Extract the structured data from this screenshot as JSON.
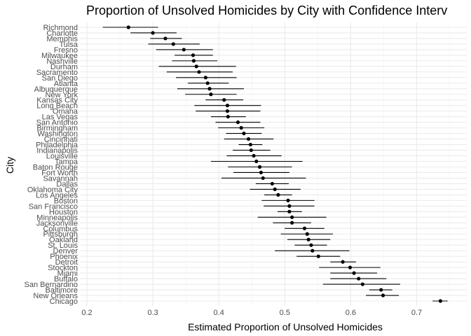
{
  "chart_data": {
    "type": "scatter",
    "title": "Proportion of Unsolved Homicides by City with Confidence Interv",
    "xlabel": "Estimated Proportion of Unsolved Homicides",
    "ylabel": "City",
    "xlim": [
      0.18,
      0.78
    ],
    "x_ticks": [
      0.2,
      0.3,
      0.4,
      0.5,
      0.6,
      0.7
    ],
    "x_tick_labels": [
      "0.2",
      "0.3",
      "0.4",
      "0.5",
      "0.6",
      "0.7"
    ],
    "grid": true,
    "point_color": "#000000",
    "cities": [
      {
        "name": "Richmond",
        "estimate": 0.263,
        "low": 0.224,
        "high": 0.308
      },
      {
        "name": "Charlotte",
        "estimate": 0.3,
        "low": 0.266,
        "high": 0.336
      },
      {
        "name": "Memphis",
        "estimate": 0.319,
        "low": 0.296,
        "high": 0.344
      },
      {
        "name": "Tulsa",
        "estimate": 0.331,
        "low": 0.293,
        "high": 0.371
      },
      {
        "name": "Fresno",
        "estimate": 0.347,
        "low": 0.305,
        "high": 0.391
      },
      {
        "name": "Milwaukee",
        "estimate": 0.361,
        "low": 0.333,
        "high": 0.391
      },
      {
        "name": "Nashville",
        "estimate": 0.362,
        "low": 0.329,
        "high": 0.398
      },
      {
        "name": "Durham",
        "estimate": 0.366,
        "low": 0.309,
        "high": 0.426
      },
      {
        "name": "Sacramento",
        "estimate": 0.37,
        "low": 0.321,
        "high": 0.421
      },
      {
        "name": "San Diego",
        "estimate": 0.38,
        "low": 0.335,
        "high": 0.427
      },
      {
        "name": "Atlanta",
        "estimate": 0.383,
        "low": 0.353,
        "high": 0.415
      },
      {
        "name": "Albuquerque",
        "estimate": 0.386,
        "low": 0.337,
        "high": 0.438
      },
      {
        "name": "New York",
        "estimate": 0.388,
        "low": 0.349,
        "high": 0.427
      },
      {
        "name": "Kansas City",
        "estimate": 0.408,
        "low": 0.38,
        "high": 0.437
      },
      {
        "name": "Long Beach",
        "estimate": 0.413,
        "low": 0.363,
        "high": 0.464
      },
      {
        "name": "Omaha",
        "estimate": 0.413,
        "low": 0.365,
        "high": 0.463
      },
      {
        "name": "Las Vegas",
        "estimate": 0.414,
        "low": 0.388,
        "high": 0.441
      },
      {
        "name": "San Antonio",
        "estimate": 0.429,
        "low": 0.395,
        "high": 0.463
      },
      {
        "name": "Birmingham",
        "estimate": 0.434,
        "low": 0.399,
        "high": 0.469
      },
      {
        "name": "Washington",
        "estimate": 0.438,
        "low": 0.411,
        "high": 0.465
      },
      {
        "name": "Cincinnati",
        "estimate": 0.445,
        "low": 0.408,
        "high": 0.483
      },
      {
        "name": "Philadelphia",
        "estimate": 0.448,
        "low": 0.43,
        "high": 0.466
      },
      {
        "name": "Indianapolis",
        "estimate": 0.449,
        "low": 0.421,
        "high": 0.478
      },
      {
        "name": "Louisville",
        "estimate": 0.453,
        "low": 0.412,
        "high": 0.495
      },
      {
        "name": "Tampa",
        "estimate": 0.457,
        "low": 0.388,
        "high": 0.527
      },
      {
        "name": "Baton Rouge",
        "estimate": 0.462,
        "low": 0.414,
        "high": 0.511
      },
      {
        "name": "Fort Worth",
        "estimate": 0.464,
        "low": 0.422,
        "high": 0.507
      },
      {
        "name": "Savannah",
        "estimate": 0.467,
        "low": 0.404,
        "high": 0.532
      },
      {
        "name": "Dallas",
        "estimate": 0.481,
        "low": 0.456,
        "high": 0.506
      },
      {
        "name": "Oklahoma City",
        "estimate": 0.485,
        "low": 0.447,
        "high": 0.524
      },
      {
        "name": "Los Angeles",
        "estimate": 0.49,
        "low": 0.469,
        "high": 0.511
      },
      {
        "name": "Boston",
        "estimate": 0.505,
        "low": 0.465,
        "high": 0.545
      },
      {
        "name": "San Francisco",
        "estimate": 0.507,
        "low": 0.468,
        "high": 0.545
      },
      {
        "name": "Houston",
        "estimate": 0.507,
        "low": 0.489,
        "high": 0.526
      },
      {
        "name": "Minneapolis",
        "estimate": 0.511,
        "low": 0.459,
        "high": 0.563
      },
      {
        "name": "Jacksonville",
        "estimate": 0.511,
        "low": 0.482,
        "high": 0.54
      },
      {
        "name": "Columbus",
        "estimate": 0.53,
        "low": 0.5,
        "high": 0.56
      },
      {
        "name": "Pittsburgh",
        "estimate": 0.534,
        "low": 0.494,
        "high": 0.573
      },
      {
        "name": "Oakland",
        "estimate": 0.536,
        "low": 0.504,
        "high": 0.569
      },
      {
        "name": "St. Louis",
        "estimate": 0.54,
        "low": 0.515,
        "high": 0.564
      },
      {
        "name": "Denver",
        "estimate": 0.542,
        "low": 0.485,
        "high": 0.598
      },
      {
        "name": "Phoenix",
        "estimate": 0.551,
        "low": 0.518,
        "high": 0.584
      },
      {
        "name": "Detroit",
        "estimate": 0.588,
        "low": 0.569,
        "high": 0.608
      },
      {
        "name": "Stockton",
        "estimate": 0.599,
        "low": 0.552,
        "high": 0.645
      },
      {
        "name": "Miami",
        "estimate": 0.605,
        "low": 0.569,
        "high": 0.64
      },
      {
        "name": "Buffalo",
        "estimate": 0.612,
        "low": 0.569,
        "high": 0.654
      },
      {
        "name": "San Bernardino",
        "estimate": 0.618,
        "low": 0.558,
        "high": 0.675
      },
      {
        "name": "Baltimore",
        "estimate": 0.646,
        "low": 0.628,
        "high": 0.663
      },
      {
        "name": "New Orleans",
        "estimate": 0.649,
        "low": 0.623,
        "high": 0.673
      },
      {
        "name": "Chicago",
        "estimate": 0.736,
        "low": 0.724,
        "high": 0.747
      }
    ]
  }
}
